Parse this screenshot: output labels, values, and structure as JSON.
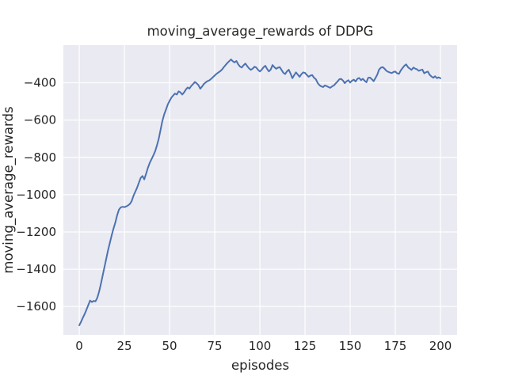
{
  "figure": {
    "background": "#ffffff"
  },
  "chart_data": {
    "type": "line",
    "title": "moving_average_rewards of DDPG",
    "xlabel": "episodes",
    "ylabel": "moving_average_rewards",
    "grid": true,
    "legend": "none",
    "xlim": [
      -8.8,
      209.2
    ],
    "ylim": [
      -1752,
      -198
    ],
    "x_ticks": [
      0,
      25,
      50,
      75,
      100,
      125,
      150,
      175,
      200
    ],
    "x_tick_labels": [
      "0",
      "25",
      "50",
      "75",
      "100",
      "125",
      "150",
      "175",
      "200"
    ],
    "y_ticks": [
      -400,
      -600,
      -800,
      -1000,
      -1200,
      -1400,
      -1600
    ],
    "y_tick_labels": [
      "−400",
      "−600",
      "−800",
      "−1000",
      "−1200",
      "−1400",
      "−1600"
    ],
    "style": {
      "plot_background": "#eaeaf2",
      "grid_color": "#ffffff",
      "line_color": "#4c72b0",
      "text_color": "#262626",
      "line_width": 2
    },
    "series": [
      {
        "name": "moving_average_rewards",
        "x_start": 0,
        "x_step": 1,
        "y": [
          -1700,
          -1682,
          -1660,
          -1640,
          -1616,
          -1592,
          -1568,
          -1576,
          -1570,
          -1572,
          -1552,
          -1520,
          -1478,
          -1432,
          -1386,
          -1340,
          -1296,
          -1256,
          -1216,
          -1180,
          -1148,
          -1110,
          -1080,
          -1068,
          -1065,
          -1067,
          -1063,
          -1058,
          -1050,
          -1035,
          -1006,
          -985,
          -963,
          -936,
          -910,
          -900,
          -918,
          -888,
          -856,
          -830,
          -810,
          -790,
          -768,
          -736,
          -700,
          -652,
          -606,
          -570,
          -544,
          -516,
          -497,
          -480,
          -468,
          -458,
          -463,
          -446,
          -451,
          -463,
          -452,
          -436,
          -425,
          -431,
          -417,
          -407,
          -396,
          -403,
          -413,
          -432,
          -420,
          -406,
          -398,
          -391,
          -387,
          -379,
          -370,
          -361,
          -352,
          -345,
          -338,
          -329,
          -317,
          -305,
          -294,
          -284,
          -275,
          -284,
          -291,
          -283,
          -301,
          -313,
          -318,
          -306,
          -297,
          -311,
          -323,
          -331,
          -324,
          -314,
          -318,
          -331,
          -339,
          -330,
          -317,
          -309,
          -326,
          -339,
          -329,
          -305,
          -316,
          -325,
          -319,
          -316,
          -331,
          -346,
          -353,
          -339,
          -330,
          -351,
          -375,
          -359,
          -344,
          -356,
          -368,
          -354,
          -344,
          -347,
          -358,
          -368,
          -361,
          -359,
          -373,
          -381,
          -401,
          -413,
          -419,
          -423,
          -414,
          -418,
          -423,
          -427,
          -419,
          -414,
          -403,
          -393,
          -381,
          -379,
          -388,
          -402,
          -392,
          -386,
          -399,
          -389,
          -383,
          -393,
          -378,
          -374,
          -386,
          -379,
          -389,
          -397,
          -373,
          -372,
          -381,
          -391,
          -374,
          -357,
          -329,
          -319,
          -316,
          -324,
          -335,
          -341,
          -345,
          -348,
          -342,
          -340,
          -349,
          -352,
          -334,
          -321,
          -309,
          -301,
          -316,
          -324,
          -331,
          -318,
          -324,
          -328,
          -336,
          -332,
          -329,
          -349,
          -343,
          -340,
          -357,
          -366,
          -373,
          -365,
          -375,
          -371,
          -376
        ]
      }
    ]
  }
}
